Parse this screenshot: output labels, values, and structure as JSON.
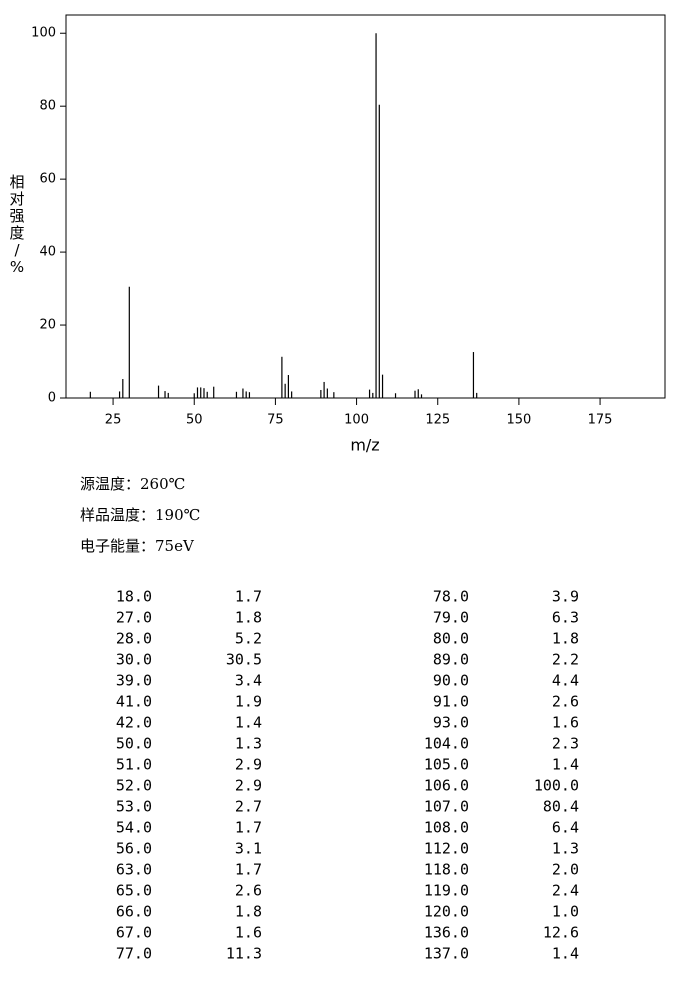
{
  "chart_data": {
    "type": "bar",
    "y_label": "相对强度/%",
    "x_label": "m/z",
    "x": [
      18,
      27,
      28,
      30,
      39,
      41,
      42,
      50,
      51,
      52,
      53,
      54,
      56,
      63,
      65,
      66,
      67,
      77,
      78,
      79,
      80,
      89,
      90,
      91,
      93,
      104,
      105,
      106,
      107,
      108,
      112,
      118,
      119,
      120,
      136,
      137
    ],
    "x_labels": [
      "18.0",
      "27.0",
      "28.0",
      "30.0",
      "39.0",
      "41.0",
      "42.0",
      "50.0",
      "51.0",
      "52.0",
      "53.0",
      "54.0",
      "56.0",
      "63.0",
      "65.0",
      "66.0",
      "67.0",
      "77.0",
      "78.0",
      "79.0",
      "80.0",
      "89.0",
      "90.0",
      "91.0",
      "93.0",
      "104.0",
      "105.0",
      "106.0",
      "107.0",
      "108.0",
      "112.0",
      "118.0",
      "119.0",
      "120.0",
      "136.0",
      "137.0"
    ],
    "values": [
      1.7,
      1.8,
      5.2,
      30.5,
      3.4,
      1.9,
      1.4,
      1.3,
      2.9,
      2.9,
      2.7,
      1.7,
      3.1,
      1.7,
      2.6,
      1.8,
      1.6,
      11.3,
      3.9,
      6.3,
      1.8,
      2.2,
      4.4,
      2.6,
      1.6,
      2.3,
      1.4,
      100,
      80.4,
      6.4,
      1.3,
      2.0,
      2.4,
      1.0,
      12.6,
      1.4
    ],
    "value_labels": [
      "1.7",
      "1.8",
      "5.2",
      "30.5",
      "3.4",
      "1.9",
      "1.4",
      "1.3",
      "2.9",
      "2.9",
      "2.7",
      "1.7",
      "3.1",
      "1.7",
      "2.6",
      "1.8",
      "1.6",
      "11.3",
      "3.9",
      "6.3",
      "1.8",
      "2.2",
      "4.4",
      "2.6",
      "1.6",
      "2.3",
      "1.4",
      "100.0",
      "80.4",
      "6.4",
      "1.3",
      "2.0",
      "2.4",
      "1.0",
      "12.6",
      "1.4"
    ],
    "color": "#000000",
    "xlim": [
      10.5,
      195
    ],
    "xticks": [
      25,
      50,
      75,
      100,
      125,
      150,
      175
    ],
    "ylim": [
      0,
      105
    ],
    "yticks": [
      0,
      20,
      40,
      60,
      80,
      100
    ]
  },
  "info": [
    "源温度：260℃",
    "样品温度：190℃",
    "电子能量：75eV"
  ]
}
